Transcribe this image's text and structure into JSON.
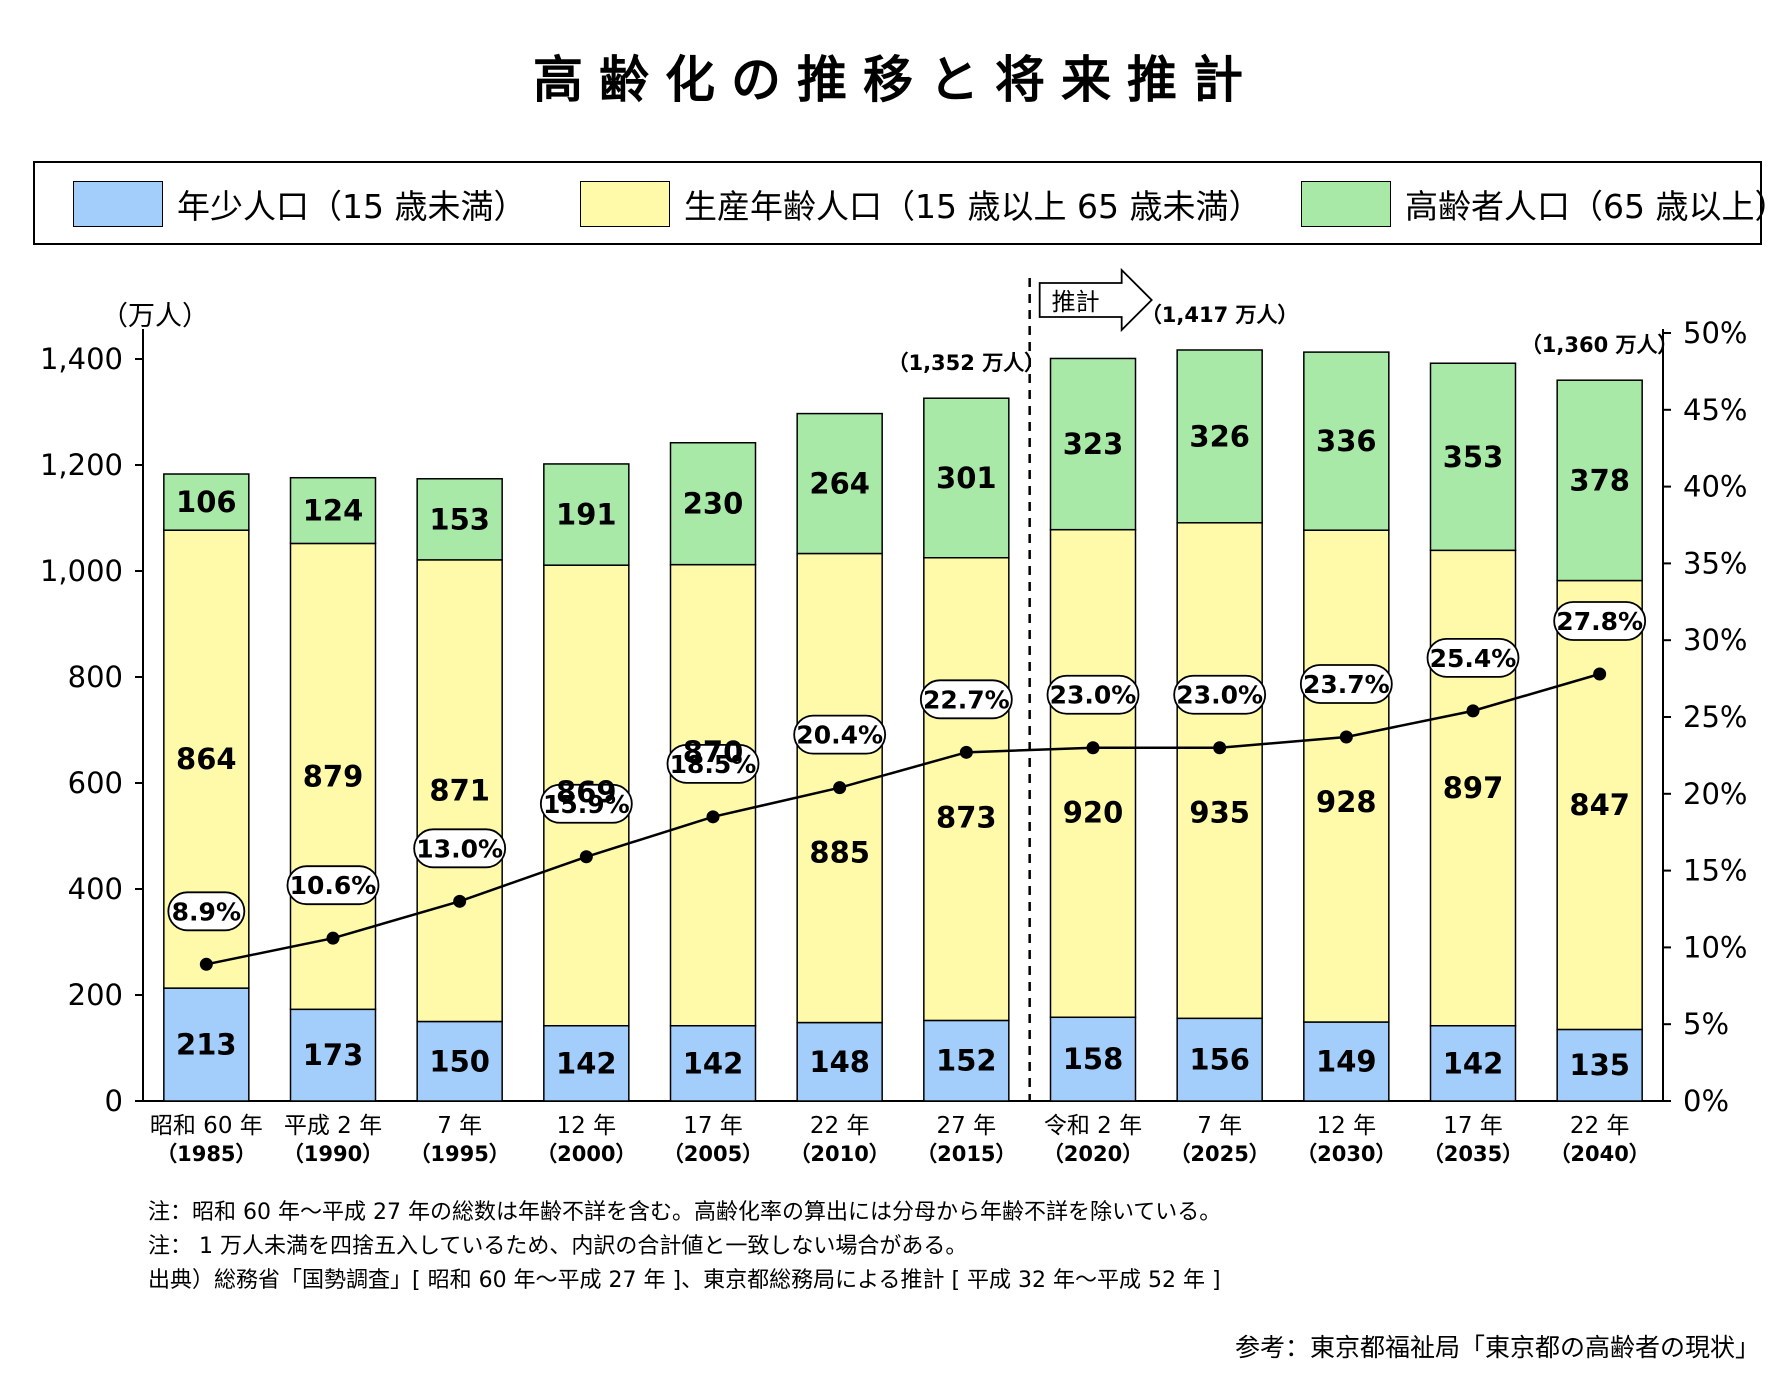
{
  "title": "高齢化の推移と将来推計",
  "legend": [
    {
      "label": "年少人口（15 歳未満）",
      "color": "#a3cdfa"
    },
    {
      "label": "生産年齢人口（15 歳以上 65 歳未満）",
      "color": "#fefaaa"
    },
    {
      "label": "高齢者人口（65 歳以上）",
      "color": "#a8e9a7"
    }
  ],
  "chart_data": {
    "type": "bar",
    "stacked": true,
    "categories": [
      {
        "era": "昭和 60 年",
        "year": "（1985）"
      },
      {
        "era": "平成 2 年",
        "year": "（1990）"
      },
      {
        "era": "7 年",
        "year": "（1995）"
      },
      {
        "era": "12 年",
        "year": "（2000）"
      },
      {
        "era": "17 年",
        "year": "（2005）"
      },
      {
        "era": "22 年",
        "year": "（2010）"
      },
      {
        "era": "27 年",
        "year": "（2015）"
      },
      {
        "era": "令和 2 年",
        "year": "（2020）"
      },
      {
        "era": "7 年",
        "year": "（2025）"
      },
      {
        "era": "12 年",
        "year": "（2030）"
      },
      {
        "era": "17 年",
        "year": "（2035）"
      },
      {
        "era": "22 年",
        "year": "（2040）"
      }
    ],
    "series": [
      {
        "name": "年少人口（15 歳未満）",
        "color": "#a3cdfa",
        "values": [
          213,
          173,
          150,
          142,
          142,
          148,
          152,
          158,
          156,
          149,
          142,
          135
        ]
      },
      {
        "name": "生産年齢人口（15 歳以上 65 歳未満）",
        "color": "#fefaaa",
        "values": [
          864,
          879,
          871,
          869,
          870,
          885,
          873,
          920,
          935,
          928,
          897,
          847
        ]
      },
      {
        "name": "高齢者人口（65 歳以上）",
        "color": "#a8e9a7",
        "values": [
          106,
          124,
          153,
          191,
          230,
          264,
          301,
          323,
          326,
          336,
          353,
          378
        ]
      }
    ],
    "aging_rate": {
      "values": [
        8.9,
        10.6,
        13.0,
        15.9,
        18.5,
        20.4,
        22.7,
        23.0,
        23.0,
        23.7,
        25.4,
        27.8
      ],
      "labels": [
        "8.9%",
        "10.6%",
        "13.0%",
        "15.9%",
        "18.5%",
        "20.4%",
        "22.7%",
        "23.0%",
        "23.0%",
        "23.7%",
        "25.4%",
        "27.8%"
      ]
    },
    "totals": [
      {
        "index": 6,
        "label": "（1,352 万人）",
        "value": 1352
      },
      {
        "index": 8,
        "label": "（1,417 万人）",
        "value": 1417
      },
      {
        "index": 11,
        "label": "（1,360 万人）",
        "value": 1360
      }
    ],
    "y_left": {
      "unit": "（万人）",
      "ylim": [
        0,
        1400
      ],
      "ticks": [
        0,
        200,
        400,
        600,
        800,
        1000,
        1200,
        1400
      ],
      "tick_labels": [
        "0",
        "200",
        "400",
        "600",
        "800",
        "1,000",
        "1,200",
        "1,400"
      ]
    },
    "y_right": {
      "ylim": [
        0,
        50
      ],
      "ticks": [
        0,
        5,
        10,
        15,
        20,
        25,
        30,
        35,
        40,
        45,
        50
      ],
      "tick_labels": [
        "0%",
        "5%",
        "10%",
        "15%",
        "20%",
        "25%",
        "30%",
        "35%",
        "40%",
        "45%",
        "50%"
      ]
    },
    "projection": {
      "label": "推計",
      "after_index": 6
    },
    "grid": false,
    "legend_position": "top"
  },
  "notes": [
    "注：昭和 60 年～平成 27 年の総数は年齢不詳を含む。高齢化率の算出には分母から年齢不詳を除いている。",
    "注： 1 万人未満を四捨五入しているため、内訳の合計値と一致しない場合がある。",
    "出典）総務省「国勢調査」[ 昭和 60 年～平成 27 年 ]、東京都総務局による推計 [ 平成 32 年～平成 52 年 ]"
  ],
  "source_ref": "参考：東京都福祉局「東京都の高齢者の現状」"
}
